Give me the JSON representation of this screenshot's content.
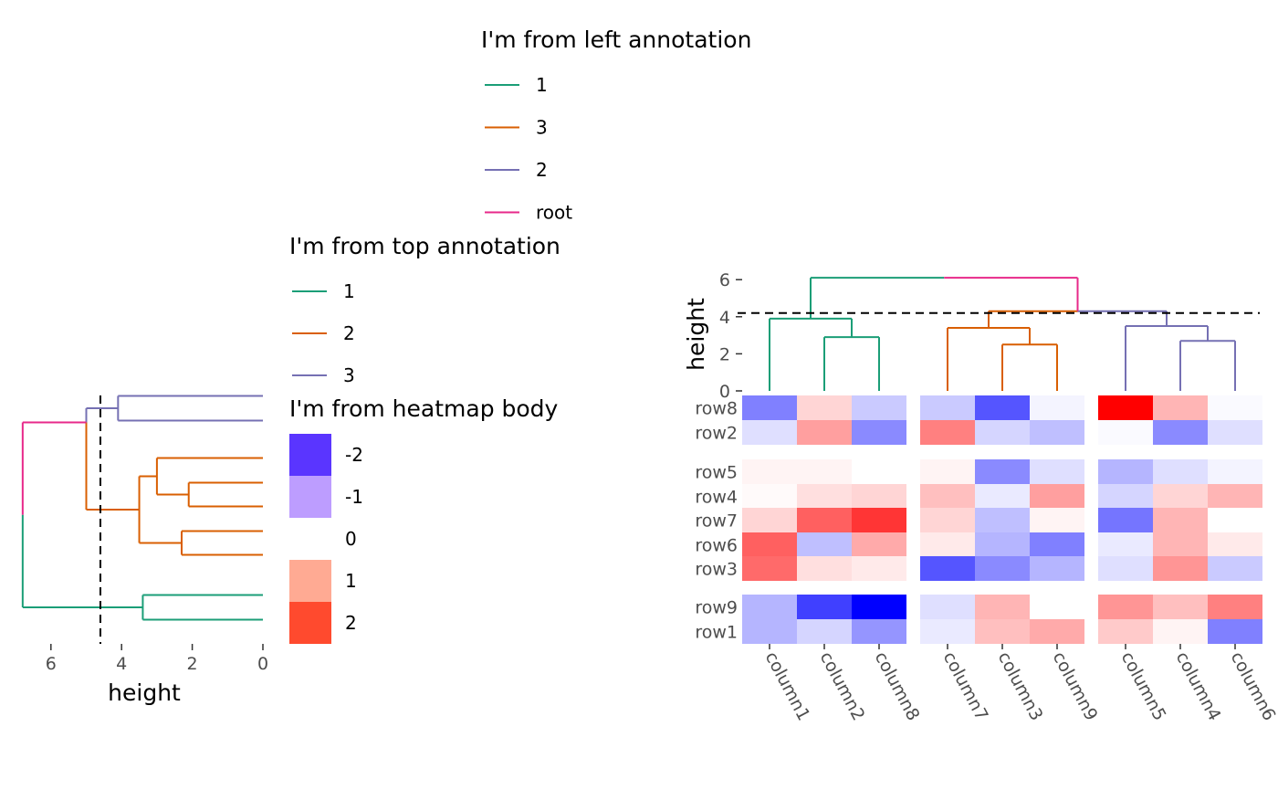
{
  "chart_data": {
    "type": "heatmap",
    "title": "",
    "columns": [
      "column1",
      "column2",
      "column8",
      "column7",
      "column3",
      "column9",
      "column5",
      "column4",
      "column6"
    ],
    "column_groups": [
      [
        "column1",
        "column2",
        "column8"
      ],
      [
        "column7",
        "column3",
        "column9"
      ],
      [
        "column5",
        "column4",
        "column6"
      ]
    ],
    "rows": [
      "row8",
      "row2",
      "row5",
      "row4",
      "row7",
      "row6",
      "row3",
      "row9",
      "row1"
    ],
    "row_groups": [
      [
        "row8",
        "row2"
      ],
      [
        "row5",
        "row4",
        "row7",
        "row6",
        "row3"
      ],
      [
        "row9",
        "row1"
      ]
    ],
    "values": [
      [
        -1.2,
        0.4,
        -0.5,
        -0.5,
        -1.6,
        -0.1,
        2.4,
        0.7,
        -0.05
      ],
      [
        -0.3,
        0.9,
        -1.1,
        1.2,
        -0.4,
        -0.6,
        -0.05,
        -1.1,
        -0.3
      ],
      [
        0.1,
        0.1,
        0.0,
        0.1,
        -1.1,
        -0.3,
        -0.7,
        -0.3,
        -0.1
      ],
      [
        0.05,
        0.3,
        0.4,
        0.6,
        -0.2,
        0.9,
        -0.4,
        0.4,
        0.7
      ],
      [
        0.4,
        1.5,
        1.9,
        0.4,
        -0.6,
        0.1,
        -1.3,
        0.7,
        0.0
      ],
      [
        1.5,
        -0.6,
        0.8,
        0.2,
        -0.7,
        -1.2,
        -0.2,
        0.7,
        0.2
      ],
      [
        1.4,
        0.3,
        0.2,
        -1.6,
        -1.1,
        -0.7,
        -0.3,
        1.0,
        -0.5
      ],
      [
        -0.7,
        -1.8,
        -2.4,
        -0.3,
        0.7,
        0.0,
        1.0,
        0.6,
        1.2
      ],
      [
        -0.7,
        -0.4,
        -1.0,
        -0.2,
        0.6,
        0.8,
        0.5,
        0.1,
        -1.2
      ]
    ],
    "color_scale": {
      "breaks": [
        -2,
        -1,
        0,
        1,
        2
      ],
      "low": "#0000ff",
      "mid": "#ffffff",
      "high": "#ff0000"
    },
    "top_dendrogram": {
      "axis_label": "height",
      "ticks": [
        0,
        2,
        4,
        6
      ],
      "range": [
        0,
        6.5
      ],
      "cut_height": 4.2,
      "merges": [
        {
          "members": [
            "column2",
            "column8"
          ],
          "height": 2.9,
          "group": "1"
        },
        {
          "members": [
            "column1",
            "column2,column8"
          ],
          "height": 3.9,
          "group": "1"
        },
        {
          "members": [
            "column3",
            "column9"
          ],
          "height": 2.5,
          "group": "2"
        },
        {
          "members": [
            "column7",
            "column3,column9"
          ],
          "height": 3.4,
          "group": "2"
        },
        {
          "members": [
            "column4",
            "column6"
          ],
          "height": 2.7,
          "group": "3"
        },
        {
          "members": [
            "column5",
            "column4,column6"
          ],
          "height": 3.5,
          "group": "3"
        },
        {
          "members": [
            "group2",
            "group3"
          ],
          "height": 4.3,
          "group": "2"
        },
        {
          "members": [
            "group1",
            "group2+3"
          ],
          "height": 6.1,
          "group": "root"
        }
      ]
    },
    "left_dendrogram": {
      "axis_label": "height",
      "ticks": [
        6,
        4,
        2,
        0
      ],
      "range": [
        0,
        7.2
      ],
      "cut_height": 4.6,
      "merges": [
        {
          "members": [
            "row8",
            "row2"
          ],
          "height": 4.1,
          "group": "3"
        },
        {
          "members": [
            "row4",
            "row7"
          ],
          "height": 2.1,
          "group": "2"
        },
        {
          "members": [
            "row5",
            "row4,row7"
          ],
          "height": 3.0,
          "group": "2"
        },
        {
          "members": [
            "row6",
            "row3"
          ],
          "height": 2.3,
          "group": "2"
        },
        {
          "members": [
            "row5-7",
            "row6,row3"
          ],
          "height": 3.5,
          "group": "2"
        },
        {
          "members": [
            "group3",
            "group2"
          ],
          "height": 5.0,
          "group": "2"
        },
        {
          "members": [
            "row9",
            "row1"
          ],
          "height": 3.4,
          "group": "1"
        },
        {
          "members": [
            "groups2-3",
            "group1"
          ],
          "height": 6.8,
          "group": "root"
        }
      ]
    },
    "legends": [
      {
        "title": "I'm from left annotation",
        "entries": [
          {
            "label": "1",
            "color": "#1b9e77"
          },
          {
            "label": "3",
            "color": "#d95f02"
          },
          {
            "label": "2",
            "color": "#7570b3"
          },
          {
            "label": "root",
            "color": "#e7298a"
          }
        ]
      },
      {
        "title": "I'm from top annotation",
        "entries": [
          {
            "label": "1",
            "color": "#1b9e77"
          },
          {
            "label": "2",
            "color": "#d95f02"
          },
          {
            "label": "3",
            "color": "#7570b3"
          }
        ]
      },
      {
        "title": "I'm from heatmap body",
        "entries": [
          {
            "label": "-2",
            "color": "#5a35ff"
          },
          {
            "label": "-1",
            "color": "#bd9dff"
          },
          {
            "label": "0",
            "color": "#ffffff"
          },
          {
            "label": "1",
            "color": "#ffaa93"
          },
          {
            "label": "2",
            "color": "#ff4a2e"
          }
        ]
      }
    ]
  }
}
